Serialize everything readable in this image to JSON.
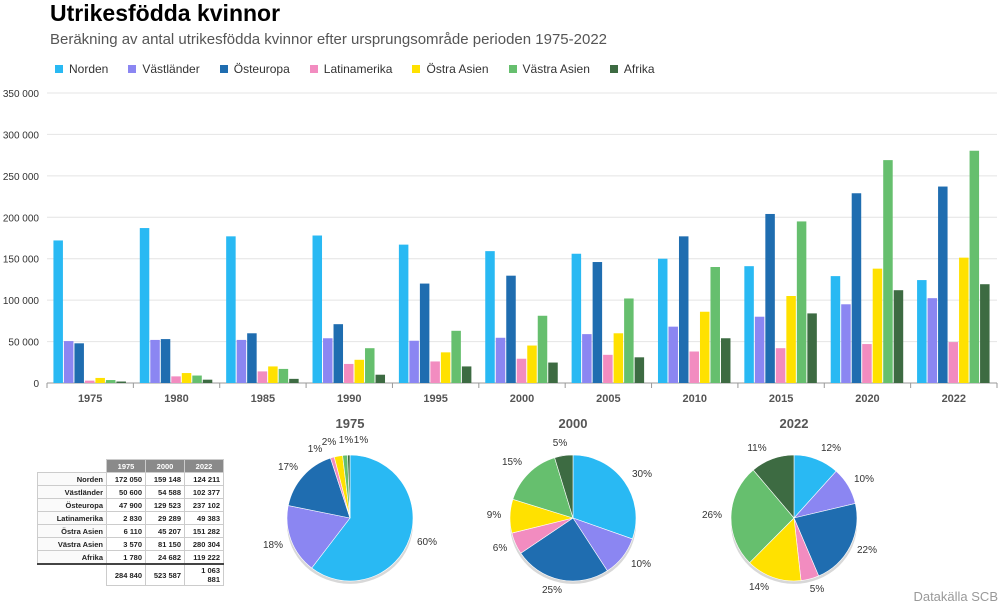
{
  "title": "Utrikesfödda kvinnor",
  "subtitle": "Beräkning av antal utrikesfödda kvinnor efter ursprungsområde perioden 1975-2022",
  "source": "Datakälla SCB",
  "chart_data": [
    {
      "type": "bar",
      "categories": [
        "1975",
        "1980",
        "1985",
        "1990",
        "1995",
        "2000",
        "2005",
        "2010",
        "2015",
        "2020",
        "2022"
      ],
      "ylim": [
        0,
        350000
      ],
      "yticks": [
        "0",
        "50 000",
        "100 000",
        "150 000",
        "200 000",
        "250 000",
        "300 000",
        "350 000"
      ],
      "grid": true,
      "legend_position": "top",
      "series": [
        {
          "name": "Norden",
          "color": "#29B9F3",
          "values": [
            172050,
            187000,
            177000,
            178000,
            167000,
            159148,
            156000,
            150000,
            141000,
            129000,
            124211
          ]
        },
        {
          "name": "Västländer",
          "color": "#8B86F2",
          "values": [
            50600,
            52000,
            52000,
            54000,
            51000,
            54588,
            59000,
            68000,
            80000,
            95000,
            102377
          ]
        },
        {
          "name": "Östeuropa",
          "color": "#1F6DB0",
          "values": [
            47900,
            53000,
            60000,
            71000,
            120000,
            129523,
            146000,
            177000,
            204000,
            229000,
            237102
          ]
        },
        {
          "name": "Latinamerika",
          "color": "#F28CC0",
          "values": [
            2830,
            8000,
            14000,
            23000,
            26000,
            29289,
            34000,
            38000,
            42000,
            47000,
            49383
          ]
        },
        {
          "name": "Östra Asien",
          "color": "#FFE100",
          "values": [
            6110,
            12000,
            20000,
            28000,
            37000,
            45207,
            60000,
            86000,
            105000,
            138000,
            151282
          ]
        },
        {
          "name": "Västra Asien",
          "color": "#66BF6E",
          "values": [
            3570,
            9000,
            17000,
            42000,
            63000,
            81150,
            102000,
            140000,
            195000,
            269000,
            280304
          ]
        },
        {
          "name": "Afrika",
          "color": "#3D6B42",
          "values": [
            1780,
            4000,
            5000,
            10000,
            20000,
            24682,
            31000,
            54000,
            84000,
            112000,
            119222
          ]
        }
      ]
    },
    {
      "type": "pie",
      "title": "1975",
      "labels": [
        "Norden",
        "Västländer",
        "Östeuropa",
        "Latinamerika",
        "Östra Asien",
        "Västra Asien",
        "Afrika"
      ],
      "values": [
        172050,
        50600,
        47900,
        2830,
        6110,
        3570,
        1780
      ],
      "pct_labels": [
        "60%",
        "18%",
        "17%",
        "1%",
        "2%",
        "1%",
        "1%"
      ]
    },
    {
      "type": "pie",
      "title": "2000",
      "labels": [
        "Norden",
        "Västländer",
        "Östeuropa",
        "Latinamerika",
        "Östra Asien",
        "Västra Asien",
        "Afrika"
      ],
      "values": [
        159148,
        54588,
        129523,
        29289,
        45207,
        81150,
        24682
      ],
      "pct_labels": [
        "30%",
        "10%",
        "25%",
        "6%",
        "9%",
        "15%",
        "5%"
      ]
    },
    {
      "type": "pie",
      "title": "2022",
      "labels": [
        "Norden",
        "Västländer",
        "Östeuropa",
        "Latinamerika",
        "Östra Asien",
        "Västra Asien",
        "Afrika"
      ],
      "values": [
        124211,
        102377,
        237102,
        49383,
        151282,
        280304,
        119222
      ],
      "pct_labels": [
        "12%",
        "10%",
        "22%",
        "5%",
        "14%",
        "26%",
        "11%"
      ]
    }
  ],
  "table": {
    "headers": [
      "1975",
      "2000",
      "2022"
    ],
    "rows": [
      {
        "label": "Norden",
        "values": [
          "172 050",
          "159 148",
          "124 211"
        ]
      },
      {
        "label": "Västländer",
        "values": [
          "50 600",
          "54 588",
          "102 377"
        ]
      },
      {
        "label": "Östeuropa",
        "values": [
          "47 900",
          "129 523",
          "237 102"
        ]
      },
      {
        "label": "Latinamerika",
        "values": [
          "2 830",
          "29 289",
          "49 383"
        ]
      },
      {
        "label": "Östra Asien",
        "values": [
          "6 110",
          "45 207",
          "151 282"
        ]
      },
      {
        "label": "Västra Asien",
        "values": [
          "3 570",
          "81 150",
          "280 304"
        ]
      },
      {
        "label": "Afrika",
        "values": [
          "1 780",
          "24 682",
          "119 222"
        ]
      }
    ],
    "totals": [
      "284 840",
      "523 587",
      "1 063 881"
    ]
  }
}
